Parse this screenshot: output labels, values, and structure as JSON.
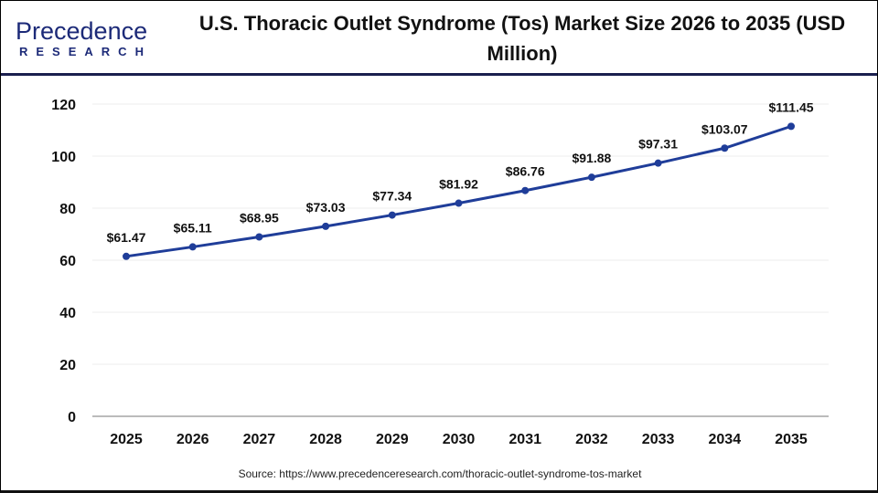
{
  "logo": {
    "line1": "Precedence",
    "line2": "RESEARCH"
  },
  "chart_data": {
    "type": "line",
    "title": "U.S. Thoracic Outlet Syndrome (Tos) Market Size 2026 to 2035 (USD Million)",
    "categories": [
      "2025",
      "2026",
      "2027",
      "2028",
      "2029",
      "2030",
      "2031",
      "2032",
      "2033",
      "2034",
      "2035"
    ],
    "series": [
      {
        "values": [
          61.47,
          65.11,
          68.95,
          73.03,
          77.34,
          81.92,
          86.76,
          91.88,
          97.31,
          103.07,
          111.45
        ],
        "labels": [
          "$61.47",
          "$65.11",
          "$68.95",
          "$73.03",
          "$77.34",
          "$81.92",
          "$86.76",
          "$91.88",
          "$97.31",
          "$103.07",
          "$111.45"
        ],
        "color": "#1f3d99"
      }
    ],
    "ylim": [
      0,
      120
    ],
    "yticks": [
      0,
      20,
      40,
      60,
      80,
      100,
      120
    ],
    "grid": true,
    "xlabel": "",
    "ylabel": ""
  },
  "source": "Source: https://www.precedenceresearch.com/thoracic-outlet-syndrome-tos-market"
}
